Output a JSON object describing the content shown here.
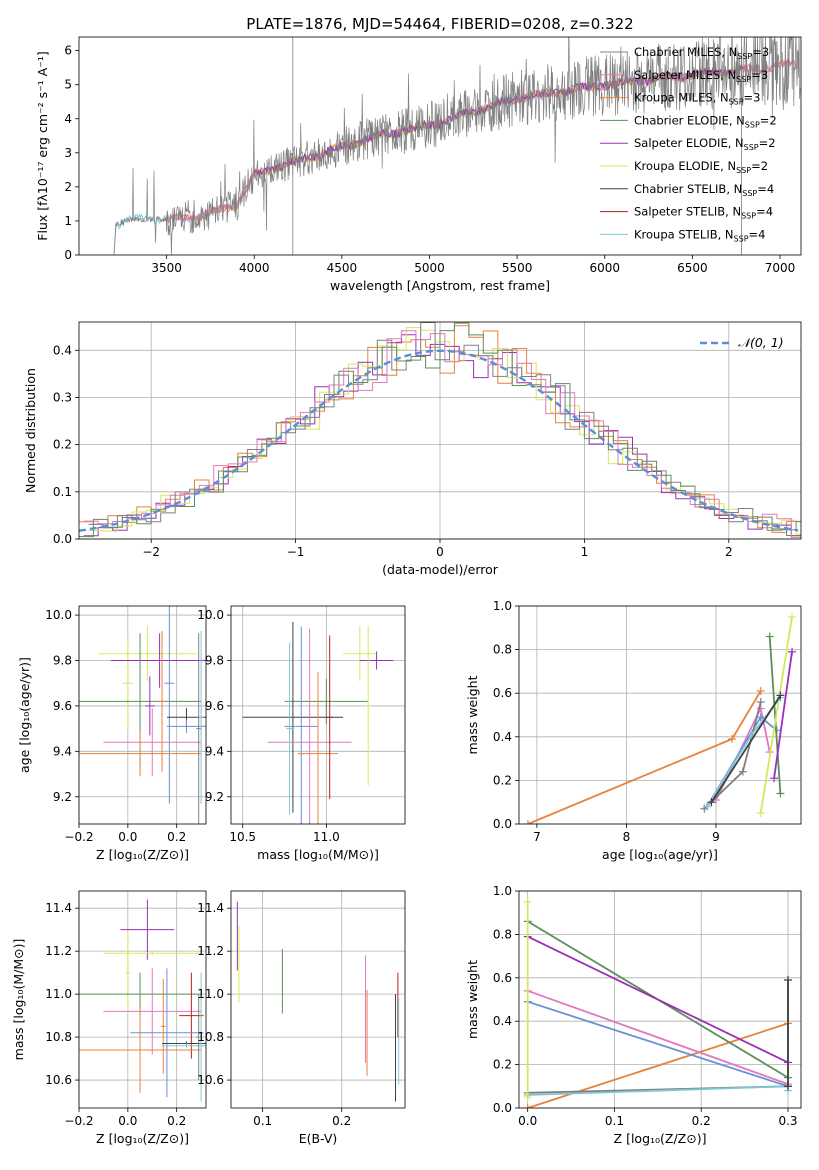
{
  "figure": {
    "title": "PLATE=1876, MJD=54464, FIBERID=0208, z=0.322"
  },
  "palette": {
    "Chabrier MILES": "#808080",
    "Salpeter MILES": "#e377c2",
    "Kroupa MILES": "#e8833a",
    "Chabrier ELODIE": "#5a8f5a",
    "Salpeter ELODIE": "#9b30b4",
    "Kroupa ELODIE": "#d6e85a",
    "Chabrier STELIB": "#404040",
    "Salpeter STELIB": "#b22222",
    "Kroupa STELIB": "#7ec8d6",
    "extra": "#6a8fd8"
  },
  "chart_data": [
    {
      "id": "spectrum",
      "type": "line",
      "title": "PLATE=1876, MJD=54464, FIBERID=0208, z=0.322",
      "xlabel": "wavelength [Angstrom, rest frame]",
      "ylabel": "Flux [fλ10⁻¹⁷ erg cm⁻² s⁻¹ A⁻¹]",
      "xlim": [
        3000,
        7120
      ],
      "ylim": [
        0,
        6.4
      ],
      "xticks": [
        3500,
        4000,
        4500,
        5000,
        5500,
        6000,
        6500,
        7000
      ],
      "yticks": [
        0,
        1,
        2,
        3,
        4,
        5,
        6
      ],
      "grid": false,
      "legend_position": "top-right",
      "legend": [
        {
          "prefix": "Chabrier MILES, N",
          "sub": "SSP",
          "suffix": "=3",
          "key": "Chabrier MILES"
        },
        {
          "prefix": "Salpeter MILES, N",
          "sub": "SSP",
          "suffix": "=3",
          "key": "Salpeter MILES"
        },
        {
          "prefix": "Kroupa MILES, N",
          "sub": "SSP",
          "suffix": "=3",
          "key": "Kroupa MILES"
        },
        {
          "prefix": "Chabrier ELODIE, N",
          "sub": "SSP",
          "suffix": "=2",
          "key": "Chabrier ELODIE"
        },
        {
          "prefix": "Salpeter ELODIE, N",
          "sub": "SSP",
          "suffix": "=2",
          "key": "Salpeter ELODIE"
        },
        {
          "prefix": "Kroupa ELODIE, N",
          "sub": "SSP",
          "suffix": "=2",
          "key": "Kroupa ELODIE"
        },
        {
          "prefix": "Chabrier STELIB, N",
          "sub": "SSP",
          "suffix": "=4",
          "key": "Chabrier STELIB"
        },
        {
          "prefix": "Salpeter STELIB, N",
          "sub": "SSP",
          "suffix": "=4",
          "key": "Salpeter STELIB"
        },
        {
          "prefix": "Kroupa STELIB, N",
          "sub": "SSP",
          "suffix": "=4",
          "key": "Kroupa STELIB"
        }
      ],
      "model_segments": [
        {
          "key": "Kroupa STELIB",
          "range": [
            3200,
            5700
          ]
        },
        {
          "key": "Kroupa MILES",
          "range": [
            3500,
            7100
          ]
        },
        {
          "key": "Kroupa ELODIE",
          "range": [
            4000,
            6800
          ]
        },
        {
          "key": "Salpeter MILES",
          "range": [
            3500,
            7100
          ]
        },
        {
          "key": "Salpeter ELODIE",
          "range": [
            4000,
            6800
          ]
        }
      ],
      "continuum_shape": [
        [
          3200,
          0.0
        ],
        [
          3210,
          0.9
        ],
        [
          3300,
          1.05
        ],
        [
          3500,
          1.05
        ],
        [
          3700,
          1.15
        ],
        [
          3900,
          1.5
        ],
        [
          4000,
          2.35
        ],
        [
          4300,
          2.85
        ],
        [
          4700,
          3.5
        ],
        [
          5000,
          3.8
        ],
        [
          5300,
          4.3
        ],
        [
          5500,
          4.6
        ],
        [
          6000,
          5.0
        ],
        [
          6500,
          5.3
        ],
        [
          7100,
          5.6
        ]
      ],
      "spikes": [
        {
          "x": 4220,
          "y": 6.4
        },
        {
          "x": 6780,
          "y": 6.4
        }
      ]
    },
    {
      "id": "residuals",
      "type": "line",
      "xlabel": "(data-model)/error",
      "ylabel": "Normed distribution",
      "xlim": [
        -2.5,
        2.5
      ],
      "ylim": [
        0,
        0.46
      ],
      "xticks": [
        -2,
        -1,
        0,
        1,
        2
      ],
      "yticks": [
        0,
        0.1,
        0.2,
        0.3,
        0.4
      ],
      "grid": true,
      "legend_position": "top-right",
      "gaussian_label": "𝒩(0, 1)",
      "gaussian": {
        "mu": 0,
        "sigma": 1,
        "color": "#5b8fd6"
      },
      "histograms": [
        {
          "key": "Kroupa MILES",
          "seed": 3
        },
        {
          "key": "Salpeter ELODIE",
          "seed": 7
        },
        {
          "key": "Kroupa ELODIE",
          "seed": 11
        },
        {
          "key": "Chabrier ELODIE",
          "seed": 17
        },
        {
          "key": "Salpeter MILES",
          "seed": 23
        },
        {
          "key": "Chabrier MILES",
          "seed": 29
        }
      ]
    },
    {
      "id": "age_vs_Z",
      "type": "scatter",
      "xlabel": "Z [log₁₀(Z/Z⊙)]",
      "ylabel": "age  [log₁₀(age/yr)]",
      "xlim": [
        -0.2,
        0.32
      ],
      "ylim": [
        9.08,
        10.04
      ],
      "xticks": [
        -0.2,
        0.0,
        0.2
      ],
      "xticklabels": [
        "−0.2",
        "0.0",
        "0.2"
      ],
      "yticks": [
        9.2,
        9.4,
        9.6,
        9.8,
        10.0
      ],
      "grid": true,
      "errorbars": [
        {
          "key": "Kroupa ELODIE",
          "x": 0.08,
          "xerr": 0.2,
          "y": 9.83,
          "yerr": 0.12
        },
        {
          "key": "Kroupa ELODIE",
          "x": 0.0,
          "xerr": 0.02,
          "y": 9.7,
          "yerr": 0.2
        },
        {
          "key": "Salpeter ELODIE",
          "x": 0.13,
          "xerr": 0.2,
          "y": 9.8,
          "yerr": 0.12
        },
        {
          "key": "Chabrier ELODIE",
          "x": 0.05,
          "xerr": 0.25,
          "y": 9.62,
          "yerr": 0.3
        },
        {
          "key": "Salpeter ELODIE",
          "x": 0.09,
          "xerr": 0.02,
          "y": 9.6,
          "yerr": 0.13
        },
        {
          "key": "Kroupa MILES",
          "x": 0.14,
          "xerr": 0.02,
          "y": 9.62,
          "yerr": 0.31
        },
        {
          "key": "extra",
          "x": 0.17,
          "xerr": 0.02,
          "y": 9.7,
          "yerr": 0.53
        },
        {
          "key": "Chabrier STELIB",
          "x": 0.24,
          "xerr": 0.08,
          "y": 9.55,
          "yerr": 0.04
        },
        {
          "key": "extra",
          "x": 0.24,
          "xerr": 0.08,
          "y": 9.51,
          "yerr": 0.03
        },
        {
          "key": "Salpeter MILES",
          "x": 0.1,
          "xerr": 0.2,
          "y": 9.44,
          "yerr": 0.15
        },
        {
          "key": "Kroupa MILES",
          "x": 0.05,
          "xerr": 0.25,
          "y": 9.39,
          "yerr": 0.1
        },
        {
          "key": "Chabrier MILES",
          "x": 0.29,
          "xerr": 0.01,
          "y": 9.5,
          "yerr": 0.42
        },
        {
          "key": "Kroupa STELIB",
          "x": 0.3,
          "xerr": 0.01,
          "y": 9.55,
          "yerr": 0.38
        }
      ]
    },
    {
      "id": "age_vs_mass",
      "type": "scatter",
      "xlabel": "mass [log₁₀(M/M⊙)]",
      "ylabel": "",
      "xlim": [
        10.43,
        11.47
      ],
      "ylim": [
        9.08,
        10.04
      ],
      "xticks": [
        10.5,
        11.0
      ],
      "xticklabels": [
        "10.5",
        "11.0"
      ],
      "yticks": [
        9.2,
        9.4,
        9.6,
        9.8,
        10.0
      ],
      "grid": true,
      "errorbars": [
        {
          "key": "Kroupa ELODIE",
          "x": 11.2,
          "xerr": 0.1,
          "y": 9.83,
          "yerr": 0.12
        },
        {
          "key": "Salpeter ELODIE",
          "x": 11.3,
          "xerr": 0.1,
          "y": 9.8,
          "yerr": 0.04
        },
        {
          "key": "Chabrier ELODIE",
          "x": 11.0,
          "xerr": 0.25,
          "y": 9.62,
          "yerr": 0.1
        },
        {
          "key": "Chabrier STELIB",
          "x": 10.8,
          "xerr": 0.3,
          "y": 9.55,
          "yerr": 0.42
        },
        {
          "key": "extra",
          "x": 10.85,
          "xerr": 0.1,
          "y": 9.51,
          "yerr": 0.44
        },
        {
          "key": "Kroupa MILES",
          "x": 10.95,
          "xerr": 0.12,
          "y": 9.39,
          "yerr": 0.36
        },
        {
          "key": "Salpeter MILES",
          "x": 10.9,
          "xerr": 0.25,
          "y": 9.44,
          "yerr": 0.5
        },
        {
          "key": "Kroupa STELIB",
          "x": 10.78,
          "xerr": 0.02,
          "y": 9.5,
          "yerr": 0.38
        },
        {
          "key": "Salpeter STELIB",
          "x": 11.02,
          "xerr": 0.02,
          "y": 9.55,
          "yerr": 0.36
        },
        {
          "key": "Kroupa ELODIE",
          "x": 11.25,
          "xerr": 0.02,
          "y": 9.6,
          "yerr": 0.35
        }
      ]
    },
    {
      "id": "massweight_vs_age",
      "type": "line",
      "xlabel": "age  [log₁₀(age/yr)]",
      "ylabel": "mass weight",
      "xlim": [
        6.8,
        9.95
      ],
      "ylim": [
        0,
        1.0
      ],
      "xticks": [
        7,
        8,
        9
      ],
      "yticks": [
        0,
        0.2,
        0.4,
        0.6,
        0.8,
        1.0
      ],
      "grid": true,
      "series": [
        {
          "key": "Kroupa MILES",
          "points": [
            [
              6.9,
              0.0
            ],
            [
              9.18,
              0.39
            ],
            [
              9.5,
              0.61
            ]
          ]
        },
        {
          "key": "Salpeter MILES",
          "points": [
            [
              9.0,
              0.11
            ],
            [
              9.5,
              0.53
            ],
            [
              9.6,
              0.33
            ]
          ]
        },
        {
          "key": "extra",
          "points": [
            [
              8.9,
              0.08
            ],
            [
              9.5,
              0.49
            ],
            [
              9.68,
              0.43
            ]
          ]
        },
        {
          "key": "Chabrier ELODIE",
          "points": [
            [
              9.6,
              0.86
            ],
            [
              9.72,
              0.14
            ]
          ]
        },
        {
          "key": "Salpeter ELODIE",
          "points": [
            [
              9.65,
              0.21
            ],
            [
              9.85,
              0.79
            ]
          ]
        },
        {
          "key": "Kroupa ELODIE",
          "points": [
            [
              9.5,
              0.05
            ],
            [
              9.85,
              0.95
            ]
          ]
        },
        {
          "key": "Chabrier MILES",
          "points": [
            [
              8.87,
              0.07
            ],
            [
              9.3,
              0.24
            ],
            [
              9.5,
              0.56
            ]
          ]
        },
        {
          "key": "Kroupa STELIB",
          "points": [
            [
              8.9,
              0.08
            ],
            [
              9.4,
              0.41
            ],
            [
              9.72,
              0.58
            ]
          ]
        },
        {
          "key": "Chabrier STELIB",
          "points": [
            [
              8.95,
              0.1
            ],
            [
              9.72,
              0.59
            ]
          ]
        }
      ]
    },
    {
      "id": "mass_vs_Z",
      "type": "scatter",
      "xlabel": "Z [log₁₀(Z/Z⊙)]",
      "ylabel": "mass [log₁₀(M/M⊙)]",
      "xlim": [
        -0.2,
        0.32
      ],
      "ylim": [
        10.47,
        11.48
      ],
      "xticks": [
        -0.2,
        0.0,
        0.2
      ],
      "xticklabels": [
        "−0.2",
        "0.0",
        "0.2"
      ],
      "yticks": [
        10.6,
        10.8,
        11.0,
        11.2,
        11.4
      ],
      "grid": true,
      "errorbars": [
        {
          "key": "Salpeter ELODIE",
          "x": 0.08,
          "xerr": 0.11,
          "y": 11.3,
          "yerr": 0.14
        },
        {
          "key": "Kroupa ELODIE",
          "x": 0.1,
          "xerr": 0.2,
          "y": 11.19,
          "yerr": 0.01
        },
        {
          "key": "Kroupa ELODIE",
          "x": 0.0,
          "xerr": 0.01,
          "y": 11.1,
          "yerr": 0.19
        },
        {
          "key": "Chabrier ELODIE",
          "x": 0.05,
          "xerr": 0.25,
          "y": 11.0,
          "yerr": 0.1
        },
        {
          "key": "Salpeter MILES",
          "x": 0.1,
          "xerr": 0.2,
          "y": 10.92,
          "yerr": 0.2
        },
        {
          "key": "Salpeter STELIB",
          "x": 0.26,
          "xerr": 0.05,
          "y": 10.9,
          "yerr": 0.2
        },
        {
          "key": "extra",
          "x": 0.16,
          "xerr": 0.15,
          "y": 10.82,
          "yerr": 0.3
        },
        {
          "key": "Kroupa MILES",
          "x": 0.05,
          "xerr": 0.25,
          "y": 10.74,
          "yerr": 0.2
        },
        {
          "key": "Kroupa MILES",
          "x": 0.145,
          "xerr": 0.01,
          "y": 10.85,
          "yerr": 0.22
        },
        {
          "key": "Chabrier STELIB",
          "x": 0.24,
          "xerr": 0.1,
          "y": 10.77,
          "yerr": 0.01
        },
        {
          "key": "Kroupa STELIB",
          "x": 0.24,
          "xerr": 0.1,
          "y": 10.76,
          "yerr": 0.01
        },
        {
          "key": "Chabrier MILES",
          "x": 0.29,
          "xerr": 0.01,
          "y": 10.8,
          "yerr": 0.2
        },
        {
          "key": "Kroupa STELIB",
          "x": 0.3,
          "xerr": 0.01,
          "y": 10.8,
          "yerr": 0.3
        }
      ]
    },
    {
      "id": "mass_vs_ebv",
      "type": "scatter",
      "xlabel": "E(B-V)",
      "ylabel": "",
      "xlim": [
        0.06,
        0.28
      ],
      "ylim": [
        10.47,
        11.48
      ],
      "xticks": [
        0.1,
        0.2
      ],
      "xticklabels": [
        "0.1",
        "0.2"
      ],
      "yticks": [
        10.6,
        10.8,
        11.0,
        11.2,
        11.4
      ],
      "grid": true,
      "errorbars": [
        {
          "key": "Salpeter ELODIE",
          "x": 0.068,
          "xerr": 0,
          "y": 11.27,
          "yerr": 0.16
        },
        {
          "key": "Kroupa ELODIE",
          "x": 0.07,
          "xerr": 0,
          "y": 11.14,
          "yerr": 0.18
        },
        {
          "key": "Chabrier ELODIE",
          "x": 0.125,
          "xerr": 0,
          "y": 11.06,
          "yerr": 0.15
        },
        {
          "key": "Salpeter MILES",
          "x": 0.23,
          "xerr": 0,
          "y": 10.93,
          "yerr": 0.25
        },
        {
          "key": "Kroupa MILES",
          "x": 0.232,
          "xerr": 0,
          "y": 10.82,
          "yerr": 0.2
        },
        {
          "key": "Chabrier STELIB",
          "x": 0.268,
          "xerr": 0,
          "y": 10.75,
          "yerr": 0.25
        },
        {
          "key": "Salpeter STELIB",
          "x": 0.271,
          "xerr": 0,
          "y": 10.95,
          "yerr": 0.15
        },
        {
          "key": "Kroupa STELIB",
          "x": 0.272,
          "xerr": 0,
          "y": 10.78,
          "yerr": 0.2
        }
      ]
    },
    {
      "id": "massweight_vs_Z",
      "type": "line",
      "xlabel": "Z [log₁₀(Z/Z⊙)]",
      "ylabel": "mass weight",
      "xlim": [
        -0.01,
        0.315
      ],
      "ylim": [
        0,
        1.0
      ],
      "xticks": [
        0.0,
        0.1,
        0.2,
        0.3
      ],
      "xticklabels": [
        "0.0",
        "0.1",
        "0.2",
        "0.3"
      ],
      "yticks": [
        0,
        0.2,
        0.4,
        0.6,
        0.8,
        1.0
      ],
      "grid": true,
      "series": [
        {
          "key": "Kroupa MILES",
          "points": [
            [
              0.0,
              0.0
            ],
            [
              0.3,
              0.39
            ]
          ]
        },
        {
          "key": "Chabrier ELODIE",
          "points": [
            [
              0.0,
              0.86
            ],
            [
              0.3,
              0.14
            ]
          ]
        },
        {
          "key": "Salpeter ELODIE",
          "points": [
            [
              0.0,
              0.79
            ],
            [
              0.3,
              0.21
            ]
          ]
        },
        {
          "key": "Salpeter MILES",
          "points": [
            [
              0.0,
              0.54
            ],
            [
              0.3,
              0.11
            ]
          ]
        },
        {
          "key": "extra",
          "points": [
            [
              0.0,
              0.49
            ],
            [
              0.3,
              0.1
            ]
          ]
        },
        {
          "key": "Chabrier MILES",
          "points": [
            [
              0.0,
              0.07
            ],
            [
              0.3,
              0.1
            ]
          ]
        },
        {
          "key": "Kroupa STELIB",
          "points": [
            [
              0.0,
              0.06
            ],
            [
              0.3,
              0.1
            ]
          ]
        },
        {
          "key": "Kroupa ELODIE",
          "points": [
            [
              0.0,
              0.05
            ],
            [
              0.0,
              0.95
            ]
          ]
        },
        {
          "key": "Kroupa STELIB",
          "points": [
            [
              0.3,
              0.08
            ],
            [
              0.3,
              0.59
            ]
          ]
        },
        {
          "key": "Chabrier STELIB",
          "points": [
            [
              0.3,
              0.1
            ],
            [
              0.3,
              0.59
            ]
          ]
        }
      ]
    }
  ]
}
